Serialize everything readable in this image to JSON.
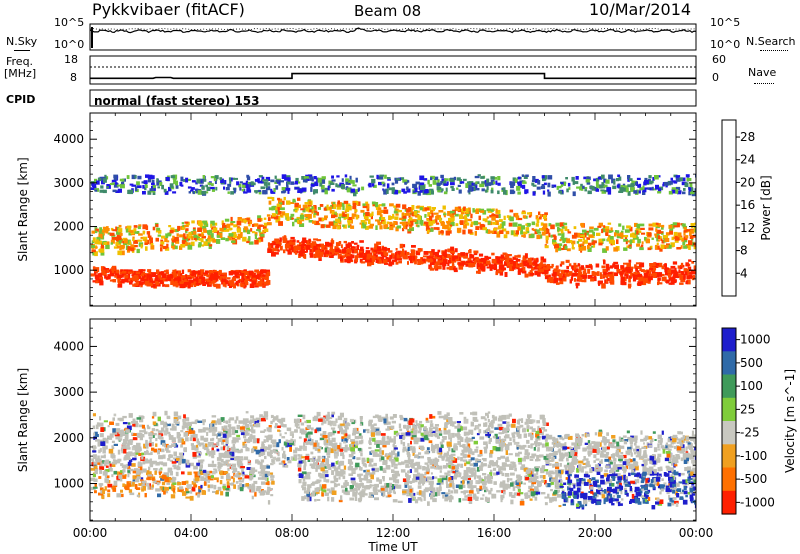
{
  "header": {
    "site": "Pykkvibaer (fitACF)",
    "beam": "Beam 08",
    "date": "10/Mar/2014"
  },
  "noise_panel": {
    "left_label": "N.Sky",
    "right_label": "N.Search",
    "left_ticks": [
      "10^5",
      "10^0"
    ],
    "right_ticks": [
      "10^5",
      "10^0"
    ]
  },
  "freq_panel": {
    "left_label_1": "Freq.",
    "left_label_2": "[MHz]",
    "right_label": "Nave",
    "left_ticks": [
      "18",
      "8"
    ],
    "right_ticks": [
      "60",
      "0"
    ],
    "frequency_series_mhz": [
      {
        "t": 0.0,
        "f": 10.2
      },
      {
        "t": 2.5,
        "f": 10.2
      },
      {
        "t": 2.6,
        "f": 10.5
      },
      {
        "t": 3.2,
        "f": 10.5
      },
      {
        "t": 3.3,
        "f": 10.2
      },
      {
        "t": 8.0,
        "f": 10.2
      },
      {
        "t": 8.0,
        "f": 12.0
      },
      {
        "t": 18.0,
        "f": 12.0
      },
      {
        "t": 18.0,
        "f": 10.2
      },
      {
        "t": 24.0,
        "f": 10.2
      }
    ]
  },
  "cpid": {
    "label": "CPID",
    "value": "normal (fast stereo) 153"
  },
  "chart_data": [
    {
      "type": "heatmap",
      "title": "",
      "xlabel": "Time UT",
      "ylabel": "Slant Range [km]",
      "x_ticks": [
        "00:00",
        "04:00",
        "08:00",
        "12:00",
        "16:00",
        "20:00",
        "00:00"
      ],
      "y_ticks": [
        "1000",
        "2000",
        "3000",
        "4000"
      ],
      "xlim": [
        0,
        24
      ],
      "ylim": [
        180,
        4600
      ],
      "colorbar_label": "Power [dB]",
      "colorbar_ticks": [
        "4",
        "8",
        "12",
        "16",
        "20",
        "24",
        "28"
      ],
      "colorbar_range": [
        0,
        31
      ],
      "colors": [
        "#1e14e6",
        "#2f4ea8",
        "#3f8a6a",
        "#6fc43a",
        "#f0c000",
        "#ff8c00",
        "#ff4a00",
        "#ff1e00"
      ]
    },
    {
      "type": "heatmap",
      "title": "",
      "xlabel": "Time UT",
      "ylabel": "Slant Range [km]",
      "x_ticks": [
        "00:00",
        "04:00",
        "08:00",
        "12:00",
        "16:00",
        "20:00",
        "00:00"
      ],
      "y_ticks": [
        "1000",
        "2000",
        "3000",
        "4000"
      ],
      "xlim": [
        0,
        24
      ],
      "ylim": [
        180,
        4600
      ],
      "colorbar_label": "Velocity [m s^-1]",
      "colorbar_ticks": [
        "1000",
        "500",
        "100",
        "25",
        "-25",
        "-100",
        "-500",
        "-1000"
      ],
      "colors": [
        "#1e1ecc",
        "#2f6aa8",
        "#3f9a5a",
        "#7fcc3a",
        "#c8c8c0",
        "#f0a020",
        "#ff7000",
        "#ff2000"
      ],
      "ground_scatter_color": "#c0c0b8"
    }
  ]
}
